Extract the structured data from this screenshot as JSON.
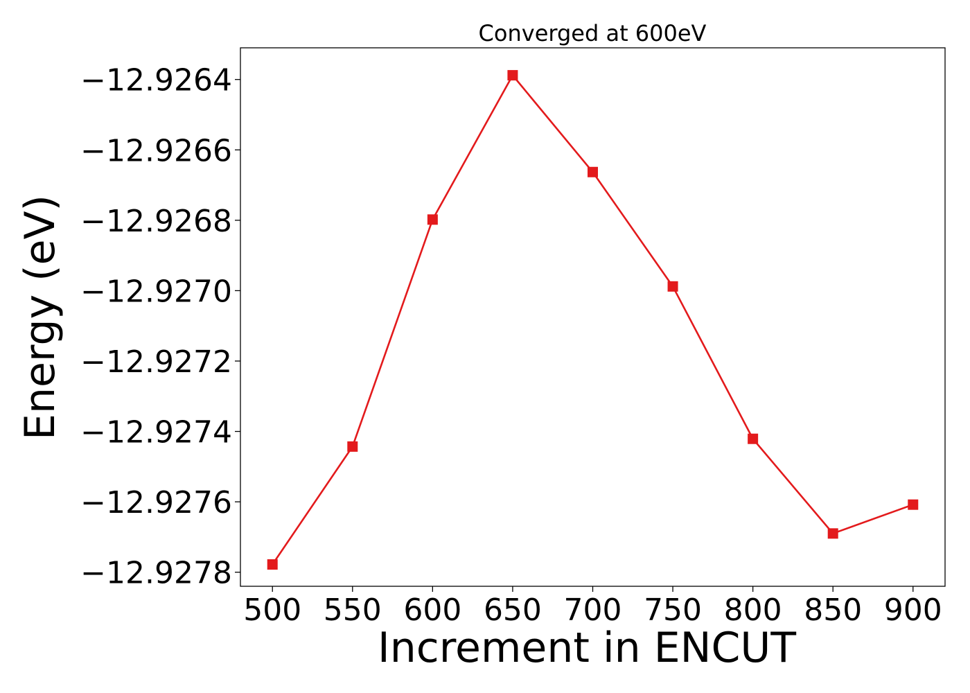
{
  "chart_data": {
    "type": "line",
    "title": "Converged at 600eV",
    "xlabel": "Increment in ENCUT",
    "ylabel": "Energy (eV)",
    "x": [
      500,
      550,
      600,
      650,
      700,
      750,
      800,
      850,
      900
    ],
    "x_ticks": [
      500,
      550,
      600,
      650,
      700,
      750,
      800,
      850,
      900
    ],
    "y_ticks": [
      -12.9264,
      -12.9266,
      -12.9268,
      -12.927,
      -12.9272,
      -12.9274,
      -12.9276,
      -12.9278
    ],
    "y_tick_labels": [
      "−12.9264",
      "−12.9266",
      "−12.9268",
      "−12.9270",
      "−12.9272",
      "−12.9274",
      "−12.9276",
      "−12.9278"
    ],
    "xlim": [
      480,
      920
    ],
    "ylim": [
      -12.92784,
      -12.92631
    ],
    "grid": false,
    "legend": "none",
    "series": [
      {
        "color": "#e31a1c",
        "marker": "square",
        "values": [
          -12.927778,
          -12.927443,
          -12.926798,
          -12.926388,
          -12.926663,
          -12.926988,
          -12.927421,
          -12.92769,
          -12.927608
        ]
      }
    ]
  }
}
